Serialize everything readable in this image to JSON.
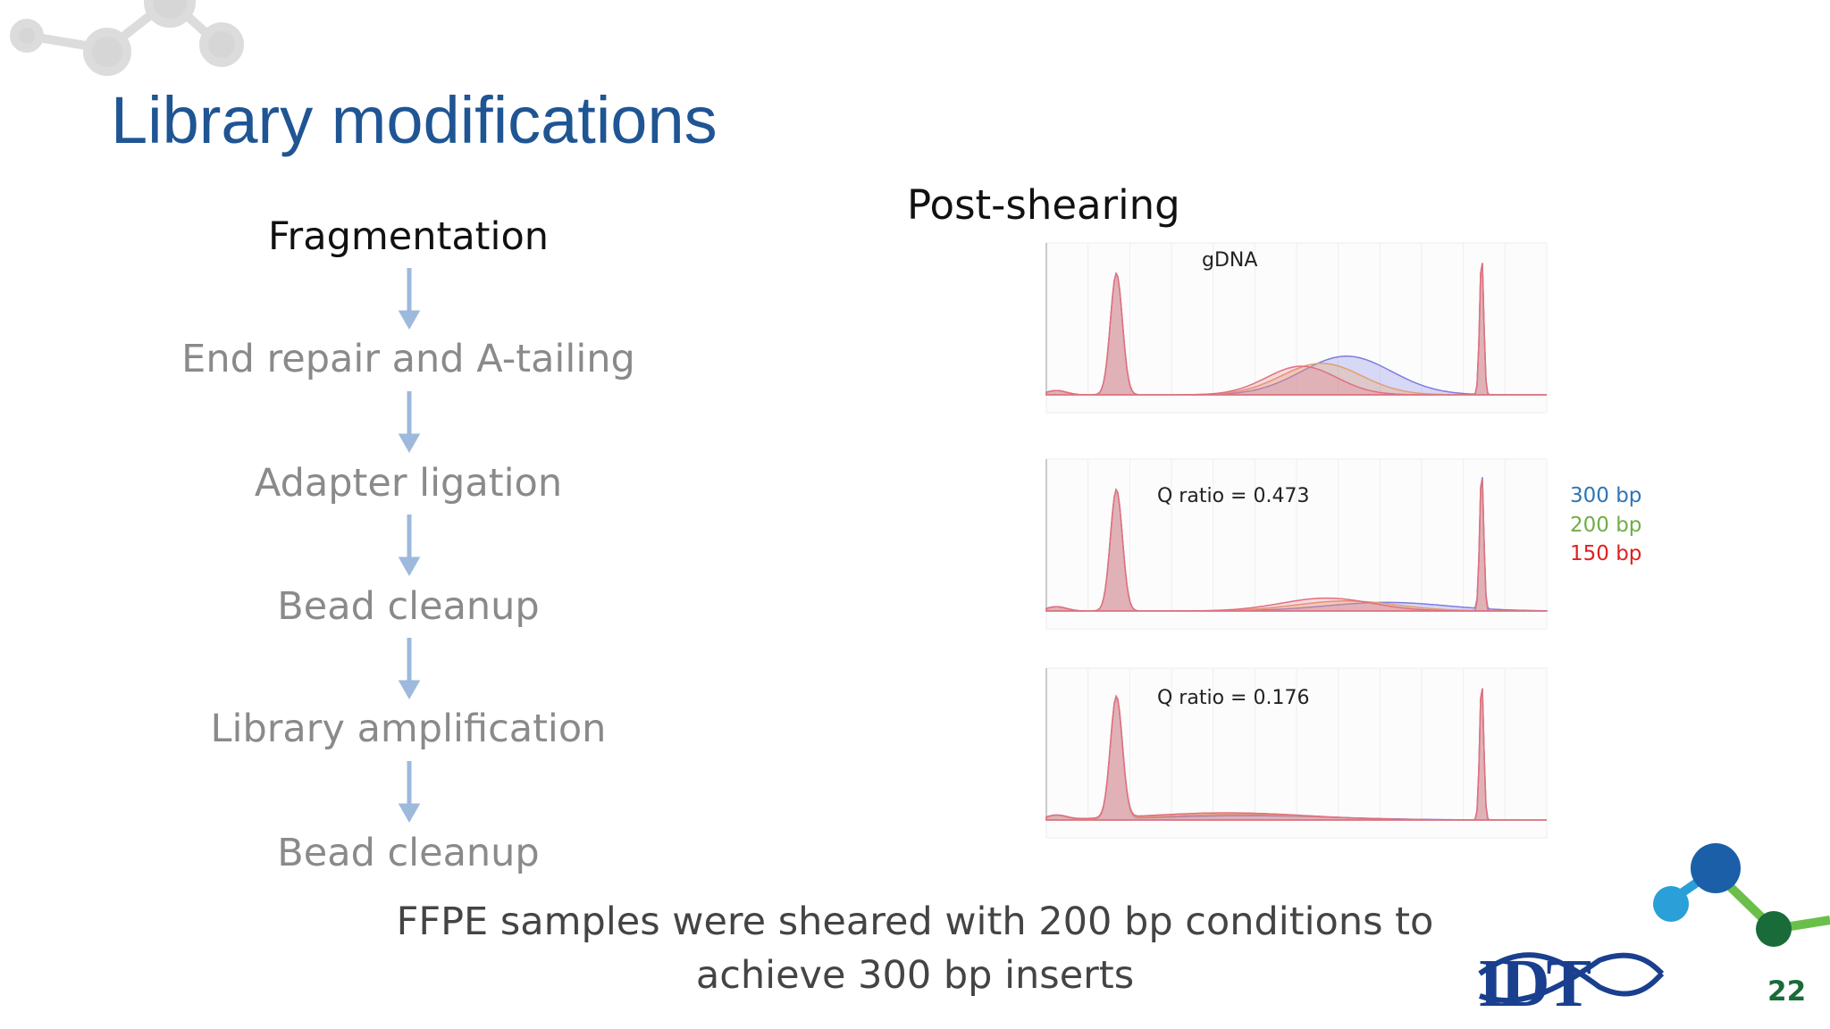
{
  "header": {
    "title": "Library modifications"
  },
  "workflow": {
    "steps": [
      "Fragmentation",
      "End repair and A-tailing",
      "Adapter ligation",
      "Bead cleanup",
      "Library amplification",
      "Bead cleanup"
    ]
  },
  "panel": {
    "title": "Post-shearing",
    "plots": [
      {
        "label": "gDNA"
      },
      {
        "label": "Q ratio = 0.473"
      },
      {
        "label": "Q ratio = 0.176"
      }
    ],
    "legend": [
      {
        "name": "300 bp",
        "color": "#2e75b6"
      },
      {
        "name": "200 bp",
        "color": "#70ad47"
      },
      {
        "name": "150 bp",
        "color": "#e02020"
      }
    ]
  },
  "caption": "FFPE samples were sheared with 200 bp conditions to achieve 300 bp inserts",
  "footer": {
    "logo": "IDT",
    "page": "22"
  }
}
